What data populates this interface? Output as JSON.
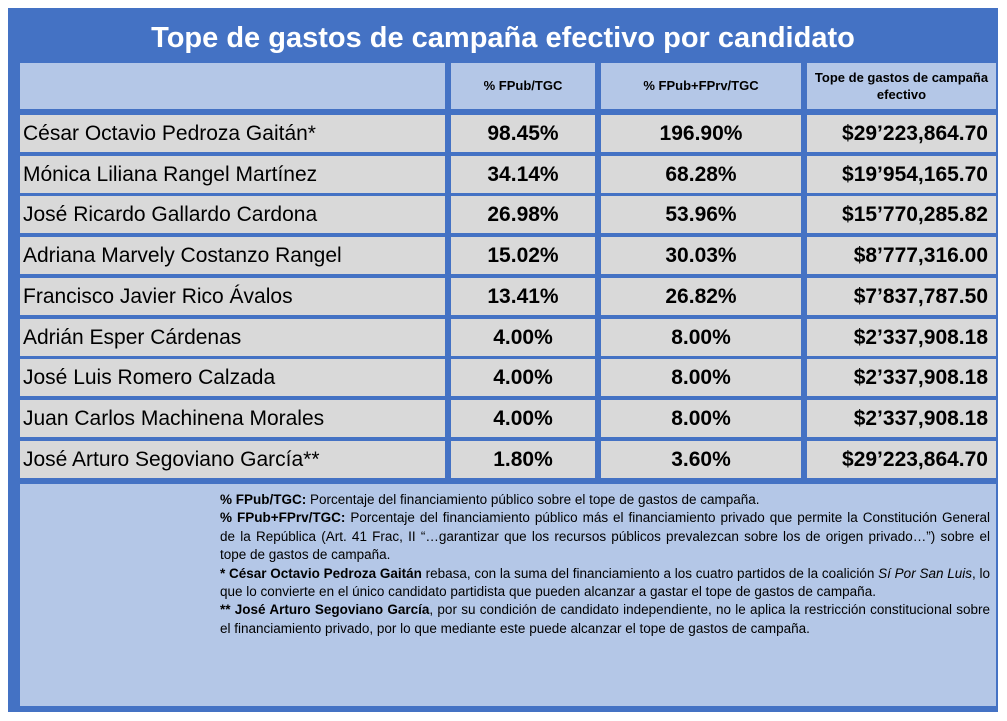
{
  "title": "Tope de gastos de campaña efectivo por candidato",
  "header": {
    "col0": "",
    "col1": "% FPub/TGC",
    "col2": "% FPub+FPrv/TGC",
    "col3": "Tope de gastos de campaña efectivo"
  },
  "rows": [
    {
      "name": "César Octavio Pedroza Gaitán*",
      "fpub": "98.45%",
      "fpub_fprv": "196.90%",
      "tope": "$29’223,864.70"
    },
    {
      "name": "Mónica Liliana Rangel Martínez",
      "fpub": "34.14%",
      "fpub_fprv": "68.28%",
      "tope": "$19’954,165.70"
    },
    {
      "name": "José Ricardo Gallardo Cardona",
      "fpub": "26.98%",
      "fpub_fprv": "53.96%",
      "tope": "$15’770,285.82"
    },
    {
      "name": "Adriana Marvely Costanzo Rangel",
      "fpub": "15.02%",
      "fpub_fprv": "30.03%",
      "tope": "$8’777,316.00"
    },
    {
      "name": "Francisco Javier Rico Ávalos",
      "fpub": "13.41%",
      "fpub_fprv": "26.82%",
      "tope": "$7’837,787.50"
    },
    {
      "name": "Adrián Esper Cárdenas",
      "fpub": "4.00%",
      "fpub_fprv": "8.00%",
      "tope": "$2’337,908.18"
    },
    {
      "name": "José Luis Romero Calzada",
      "fpub": "4.00%",
      "fpub_fprv": "8.00%",
      "tope": "$2’337,908.18"
    },
    {
      "name": "Juan Carlos Machinena Morales",
      "fpub": "4.00%",
      "fpub_fprv": "8.00%",
      "tope": "$2’337,908.18"
    },
    {
      "name": "José Arturo Segoviano García**",
      "fpub": "1.80%",
      "fpub_fprv": "3.60%",
      "tope": "$29’223,864.70"
    }
  ],
  "notes": {
    "n1_term": "% FPub/TGC:",
    "n1_text": " Porcentaje del financiamiento público sobre el tope de gastos de campaña.",
    "n2_term": "% FPub+FPrv/TGC:",
    "n2_text": " Porcentaje del financiamiento público más el financiamiento privado que permite la Constitución General de la República (Art. 41 Frac, II “…garantizar que los recursos públicos prevalezcan sobre los de origen privado…”) sobre el tope de gastos de campaña.",
    "n3_star": "* ",
    "n3_term": "César Octavio Pedroza Gaitán",
    "n3_text_a": " rebasa, con la suma del financiamiento a los cuatro partidos de la coalición ",
    "n3_italic": "Sí Por San Luis",
    "n3_text_b": ", lo que lo convierte en el único candidato partidista que pueden alcanzar a gastar el tope de gastos de campaña.",
    "n4_star": "** ",
    "n4_term": "José Arturo Segoviano García",
    "n4_text": ", por su condición de candidato independiente, no le aplica la restricción constitucional sobre el financiamiento privado, por lo que mediante este puede alcanzar el tope de gastos de campaña."
  },
  "colors": {
    "frame": "#4472c4",
    "header_bg": "#b4c7e7",
    "row_bg": "#d9d9d9",
    "notes_bg": "#b4c7e7"
  }
}
